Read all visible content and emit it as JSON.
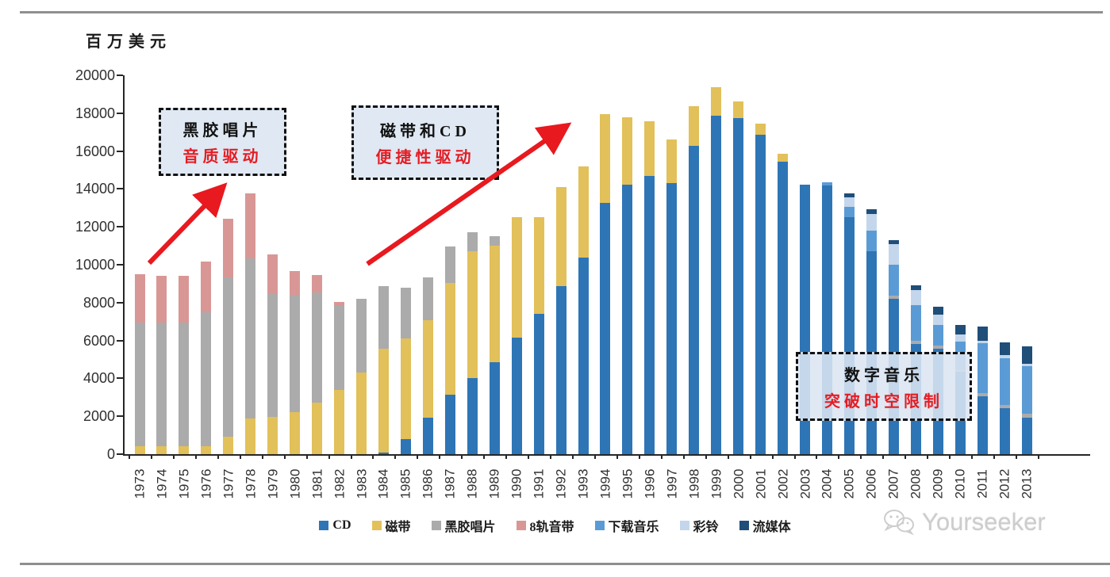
{
  "page": {
    "axis_unit_label": "百万美元",
    "watermark_text": "Yourseeker"
  },
  "annotations": {
    "vinyl": {
      "line1": "黑胶唱片",
      "line2": "音质驱动"
    },
    "cassette_cd": {
      "line1": "磁带和CD",
      "line2": "便捷性驱动"
    },
    "digital": {
      "line1": "数字音乐",
      "line2": "突破时空限制"
    }
  },
  "chart_data": {
    "type": "bar",
    "stacked": true,
    "title": "",
    "xlabel": "",
    "ylabel": "百万美元",
    "ylim": [
      0,
      20000
    ],
    "yticks": [
      0,
      2000,
      4000,
      6000,
      8000,
      10000,
      12000,
      14000,
      16000,
      18000,
      20000
    ],
    "grid": false,
    "legend_position": "bottom",
    "categories": [
      "1973",
      "1974",
      "1975",
      "1976",
      "1977",
      "1978",
      "1979",
      "1980",
      "1981",
      "1982",
      "1983",
      "1984",
      "1985",
      "1986",
      "1987",
      "1988",
      "1989",
      "1990",
      "1991",
      "1992",
      "1993",
      "1994",
      "1995",
      "1996",
      "1997",
      "1998",
      "1999",
      "2000",
      "2001",
      "2002",
      "2003",
      "2004",
      "2005",
      "2006",
      "2007",
      "2008",
      "2009",
      "2010",
      "2011",
      "2012",
      "2013"
    ],
    "series": [
      {
        "name": "CD",
        "color": "#2e75b6",
        "values": [
          0,
          0,
          0,
          0,
          0,
          0,
          0,
          0,
          0,
          0,
          0,
          100,
          790,
          1920,
          3150,
          4030,
          4850,
          6140,
          7390,
          8850,
          10380,
          13260,
          14230,
          14700,
          14330,
          16280,
          17880,
          17720,
          16880,
          15450,
          14240,
          14170,
          12530,
          10720,
          8220,
          5830,
          5580,
          4350,
          3050,
          2430,
          1940
        ]
      },
      {
        "name": "磁带",
        "color": "#e2c05a",
        "values": [
          420,
          420,
          420,
          420,
          900,
          1900,
          1950,
          2200,
          2700,
          3400,
          4300,
          5480,
          5320,
          5170,
          5900,
          6690,
          6160,
          6360,
          5110,
          5230,
          4790,
          4690,
          3570,
          2870,
          2270,
          2080,
          1500,
          890,
          580,
          420,
          0,
          0,
          0,
          0,
          0,
          0,
          0,
          0,
          0,
          0,
          0
        ]
      },
      {
        "name": "黑胶唱片",
        "color": "#ababab",
        "values": [
          6540,
          6540,
          6530,
          7080,
          8430,
          8450,
          6520,
          6200,
          5840,
          4450,
          3890,
          3310,
          2670,
          2250,
          1920,
          1000,
          480,
          0,
          0,
          0,
          0,
          0,
          0,
          0,
          0,
          0,
          0,
          0,
          0,
          0,
          0,
          0,
          0,
          0,
          140,
          140,
          140,
          100,
          160,
          150,
          200
        ]
      },
      {
        "name": "8轨音带",
        "color": "#d89795",
        "values": [
          2540,
          2440,
          2450,
          2650,
          3100,
          3400,
          2080,
          1250,
          930,
          180,
          0,
          0,
          0,
          0,
          0,
          0,
          0,
          0,
          0,
          0,
          0,
          0,
          0,
          0,
          0,
          0,
          0,
          0,
          0,
          0,
          0,
          0,
          0,
          0,
          0,
          0,
          0,
          0,
          0,
          0,
          0
        ]
      },
      {
        "name": "下载音乐",
        "color": "#5b9bd5",
        "values": [
          0,
          0,
          0,
          0,
          0,
          0,
          0,
          0,
          0,
          0,
          0,
          0,
          0,
          0,
          0,
          0,
          0,
          0,
          0,
          0,
          0,
          0,
          0,
          0,
          0,
          0,
          0,
          0,
          0,
          0,
          0,
          190,
          530,
          1080,
          1640,
          1880,
          1080,
          1500,
          2640,
          2500,
          2500
        ]
      },
      {
        "name": "彩铃",
        "color": "#c3d6ec",
        "values": [
          0,
          0,
          0,
          0,
          0,
          0,
          0,
          0,
          0,
          0,
          0,
          0,
          0,
          0,
          0,
          0,
          0,
          0,
          0,
          0,
          0,
          0,
          0,
          0,
          0,
          0,
          0,
          0,
          0,
          0,
          0,
          0,
          490,
          880,
          1080,
          830,
          550,
          360,
          120,
          150,
          150
        ]
      },
      {
        "name": "流媒体",
        "color": "#1f4e79",
        "values": [
          0,
          0,
          0,
          0,
          0,
          0,
          0,
          0,
          0,
          0,
          0,
          0,
          0,
          0,
          0,
          0,
          0,
          0,
          0,
          0,
          0,
          0,
          0,
          0,
          0,
          0,
          0,
          0,
          0,
          0,
          0,
          0,
          230,
          240,
          230,
          240,
          450,
          490,
          760,
          690,
          900
        ]
      }
    ]
  }
}
